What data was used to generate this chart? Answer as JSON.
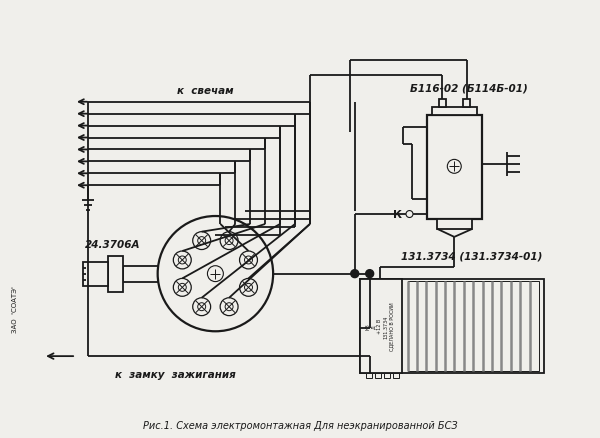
{
  "bg_color": "#f0efeb",
  "line_color": "#1a1a1a",
  "title": "Рис.1. Схема электромонтажная Для неэкранированной БСЗ",
  "title_fontsize": 7.0,
  "label_svecham": "к  свечам",
  "label_zamku": "к  замку  зажигания",
  "label_24": "24.3706А",
  "label_b116": "Б116-02 (Б114Б-01)",
  "label_131": "131.3734 (131.3734-01)",
  "label_k": "К",
  "label_zao": "ЗАО  'СОАТЭ'",
  "fig_width": 6.0,
  "fig_height": 4.39,
  "dpi": 100
}
